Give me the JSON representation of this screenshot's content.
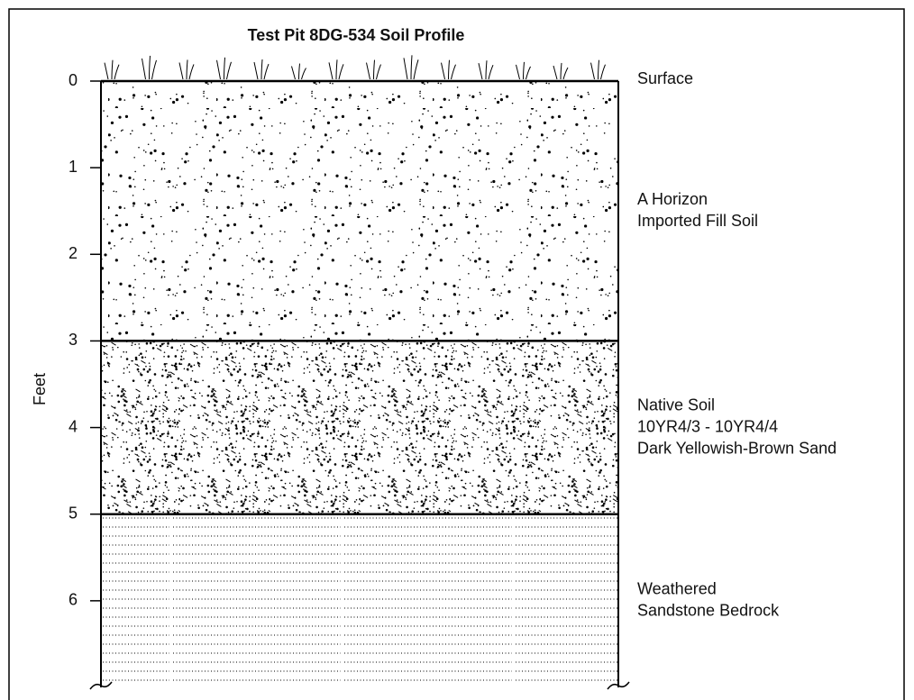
{
  "title": "Test Pit 8DG-534 Soil Profile",
  "axis_label": "Feet",
  "ylim": [
    0,
    7
  ],
  "yticks": [
    0,
    1,
    2,
    3,
    4,
    5,
    6
  ],
  "surface_label": "Surface",
  "layers": [
    {
      "top": 0,
      "bottom": 3,
      "label": [
        "A Horizon",
        "Imported Fill Soil"
      ]
    },
    {
      "top": 3,
      "bottom": 5,
      "label": [
        "Native Soil",
        "10YR4/3 - 10YR4/4",
        "Dark Yellowish-Brown Sand"
      ]
    },
    {
      "top": 5,
      "bottom": 7,
      "label": [
        "Weathered",
        "Sandstone Bedrock"
      ]
    }
  ]
}
